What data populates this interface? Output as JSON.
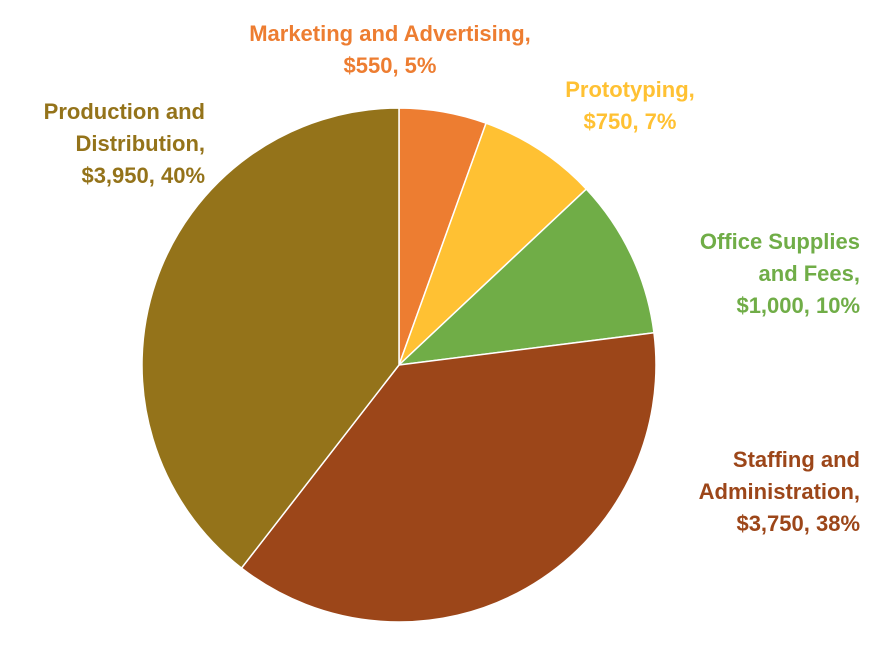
{
  "chart_data": {
    "type": "pie",
    "title": "",
    "start_angle_deg": 0,
    "direction": "clockwise",
    "legend": "none",
    "slices": [
      {
        "name": "Marketing and Advertising",
        "value": 550,
        "percent": 5,
        "value_label": "$550",
        "percent_label": "5%",
        "color": "#ED7D31",
        "label_lines": [
          "Marketing and Advertising,",
          "$550, 5%"
        ]
      },
      {
        "name": "Prototyping",
        "value": 750,
        "percent": 7,
        "value_label": "$750",
        "percent_label": "7%",
        "color": "#FFC133",
        "label_lines": [
          "Prototyping,",
          "$750, 7%"
        ]
      },
      {
        "name": "Office Supplies and Fees",
        "value": 1000,
        "percent": 10,
        "value_label": "$1,000",
        "percent_label": "10%",
        "color": "#70AD47",
        "label_lines": [
          "Office Supplies",
          "and Fees,",
          "$1,000, 10%"
        ]
      },
      {
        "name": "Staffing and Administration",
        "value": 3750,
        "percent": 38,
        "value_label": "$3,750",
        "percent_label": "38%",
        "color": "#9C4619",
        "label_lines": [
          "Staffing and",
          "Administration,",
          "$3,750, 38%"
        ]
      },
      {
        "name": "Production and Distribution",
        "value": 3950,
        "percent": 40,
        "value_label": "$3,950",
        "percent_label": "40%",
        "color": "#94731A",
        "label_lines": [
          "Production and",
          "Distribution,",
          "$3,950, 40%"
        ]
      }
    ]
  }
}
